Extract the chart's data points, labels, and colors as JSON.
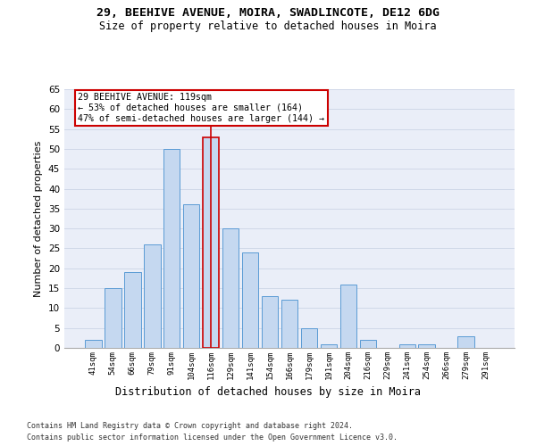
{
  "title_line1": "29, BEEHIVE AVENUE, MOIRA, SWADLINCOTE, DE12 6DG",
  "title_line2": "Size of property relative to detached houses in Moira",
  "xlabel": "Distribution of detached houses by size in Moira",
  "ylabel": "Number of detached properties",
  "footer_line1": "Contains HM Land Registry data © Crown copyright and database right 2024.",
  "footer_line2": "Contains public sector information licensed under the Open Government Licence v3.0.",
  "categories": [
    "41sqm",
    "54sqm",
    "66sqm",
    "79sqm",
    "91sqm",
    "104sqm",
    "116sqm",
    "129sqm",
    "141sqm",
    "154sqm",
    "166sqm",
    "179sqm",
    "191sqm",
    "204sqm",
    "216sqm",
    "229sqm",
    "241sqm",
    "254sqm",
    "266sqm",
    "279sqm",
    "291sqm"
  ],
  "values": [
    2,
    15,
    19,
    26,
    50,
    36,
    53,
    30,
    24,
    13,
    12,
    5,
    1,
    16,
    2,
    0,
    1,
    1,
    0,
    3,
    0
  ],
  "bar_color": "#c5d8f0",
  "bar_edge_color": "#5b9bd5",
  "highlight_bar_index": 6,
  "highlight_line_color": "#cc0000",
  "annotation_text": "29 BEEHIVE AVENUE: 119sqm\n← 53% of detached houses are smaller (164)\n47% of semi-detached houses are larger (144) →",
  "annotation_box_color": "#ffffff",
  "annotation_box_edge_color": "#cc0000",
  "ylim": [
    0,
    65
  ],
  "yticks": [
    0,
    5,
    10,
    15,
    20,
    25,
    30,
    35,
    40,
    45,
    50,
    55,
    60,
    65
  ],
  "grid_color": "#d0d8e8",
  "background_color": "#eaeef8",
  "fig_background": "#ffffff",
  "bar_width": 0.85
}
